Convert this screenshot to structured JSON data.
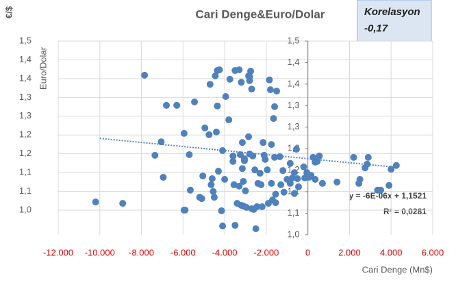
{
  "chart_data": {
    "type": "scatter",
    "title": "Cari Denge&Euro/Dolar",
    "annotation": [
      "Korelasyon",
      "-0,17"
    ],
    "y_unit": "€/$",
    "y_label": "Euro/Dolar",
    "x_label": "Cari Denge (Mn$)",
    "color": "#4f81bd",
    "x_tick_color": "#e00000",
    "grid": true,
    "xlim": [
      -12000,
      6000
    ],
    "xticks": [
      {
        "value": -12000,
        "label": "-12.000"
      },
      {
        "value": -10000,
        "label": "-10.000"
      },
      {
        "value": -8000,
        "label": "-8.000"
      },
      {
        "value": -6000,
        "label": "-6.000"
      },
      {
        "value": -4000,
        "label": "-4.000"
      },
      {
        "value": -2000,
        "label": "-2.000"
      },
      0,
      {
        "value": 2000,
        "label": "2.000"
      },
      {
        "value": 4000,
        "label": "4.000"
      },
      {
        "value": 6000,
        "label": "6.000"
      }
    ],
    "ylim": [
      0.927,
      1.5
    ],
    "yticks": [
      {
        "value": 1.0,
        "label": "1,0"
      },
      {
        "value": 1.0556,
        "label": "1,1"
      },
      {
        "value": 1.1111,
        "label": "1,1"
      },
      {
        "value": 1.1667,
        "label": "1,2"
      },
      {
        "value": 1.2222,
        "label": "1,2"
      },
      {
        "value": 1.2778,
        "label": "1,3"
      },
      {
        "value": 1.3333,
        "label": "1,3"
      },
      {
        "value": 1.3889,
        "label": "1,4"
      },
      {
        "value": 1.4444,
        "label": "1,4"
      },
      {
        "value": 1.5,
        "label": "1,5"
      }
    ],
    "y2lim": [
      1.0,
      1.5
    ],
    "y2ticks": [
      {
        "value": 1.0,
        "label": "1,0"
      },
      {
        "value": 1.0556,
        "label": "1,1"
      },
      {
        "value": 1.1111,
        "label": "1,1"
      },
      {
        "value": 1.1667,
        "label": "1,2"
      },
      {
        "value": 1.2222,
        "label": "1,2"
      },
      {
        "value": 1.2778,
        "label": "1,3"
      },
      {
        "value": 1.3333,
        "label": "1,3"
      },
      {
        "value": 1.3889,
        "label": "1,4"
      },
      {
        "value": 1.4444,
        "label": "1,4"
      },
      {
        "value": 1.5,
        "label": "1,5"
      }
    ],
    "trendline": {
      "equation": "y = -6E-06x + 1,1521",
      "r2_label": "R² = 0,0281",
      "slope": -6e-06,
      "intercept": 1.1521,
      "x_range": [
        -10000,
        4100
      ]
    },
    "x": [
      -10200,
      -8900,
      -7850,
      -7350,
      -7050,
      -6950,
      -6800,
      -6300,
      -5950,
      -5900,
      -5950,
      -5700,
      -5650,
      -5450,
      -5200,
      -5100,
      -5050,
      -4950,
      -4750,
      -4700,
      -4650,
      -4600,
      -4550,
      -4500,
      -4450,
      -4400,
      -4350,
      -4350,
      -4300,
      -4250,
      -4150,
      -4100,
      -4100,
      -4000,
      -3950,
      -3800,
      -3750,
      -3600,
      -3600,
      -3550,
      -3500,
      -3500,
      -3400,
      -3300,
      -3300,
      -3250,
      -3200,
      -3200,
      -3150,
      -3150,
      -3100,
      -3050,
      -3100,
      -3050,
      -3000,
      -2950,
      -2850,
      -2800,
      -2850,
      -2800,
      -2800,
      -2750,
      -2700,
      -2700,
      -2650,
      -2600,
      -2550,
      -2500,
      -2450,
      -2400,
      -2300,
      -2250,
      -2200,
      -2150,
      -2100,
      -2050,
      -1950,
      -1900,
      -1850,
      -1800,
      -1750,
      -1750,
      -1700,
      -1650,
      -1600,
      -1600,
      -1550,
      -1500,
      -1550,
      -1350,
      -1300,
      -1200,
      -1150,
      -1000,
      -850,
      -850,
      -750,
      -650,
      -650,
      -550,
      -500,
      -450,
      -200,
      -150,
      -50,
      50,
      150,
      250,
      350,
      350,
      450,
      550,
      700,
      1400,
      2200,
      2450,
      2500,
      2750,
      2850,
      2900,
      3350,
      3500,
      3900,
      4000,
      4250
    ],
    "values": [
      1.024,
      1.02,
      1.399,
      1.162,
      1.202,
      1.097,
      1.31,
      1.31,
      1.0,
      1.0,
      1.227,
      1.164,
      1.059,
      1.32,
      1.038,
      1.034,
      1.101,
      1.243,
      1.223,
      1.372,
      1.075,
      1.093,
      1.055,
      1.038,
      1.397,
      1.231,
      1.308,
      1.413,
      1.115,
      1.415,
      0.998,
      1.176,
      0.953,
      1.091,
      1.336,
      1.267,
      1.387,
      1.144,
      1.16,
      1.075,
      0.955,
      1.413,
      1.02,
      1.071,
      1.415,
      1.164,
      1.014,
      1.378,
      1.2,
      1.123,
      1.085,
      1.146,
      1.012,
      1.152,
      1.057,
      1.008,
      1.397,
      1.383,
      1.217,
      1.395,
      1.166,
      1.411,
      1.358,
      1.004,
      1.16,
      1.002,
      1.119,
      0.945,
      1.01,
      1.079,
      1.109,
      1.075,
      1.01,
      1.2,
      1.162,
      1.15,
      1.119,
      1.02,
      1.385,
      1.356,
      1.079,
      1.194,
      1.03,
      1.271,
      1.306,
      1.156,
      1.022,
      1.352,
      1.047,
      1.158,
      1.075,
      1.117,
      1.053,
      1.091,
      1.079,
      1.138,
      1.095,
      1.111,
      1.049,
      1.18,
      1.093,
      1.069,
      1.128,
      1.095,
      1.111,
      1.097,
      1.103,
      1.156,
      1.091,
      1.142,
      1.144,
      1.16,
      1.079,
      1.083,
      1.156,
      1.079,
      1.091,
      1.125,
      1.136,
      1.156,
      1.059,
      1.059,
      1.073,
      1.121,
      1.132
    ]
  }
}
